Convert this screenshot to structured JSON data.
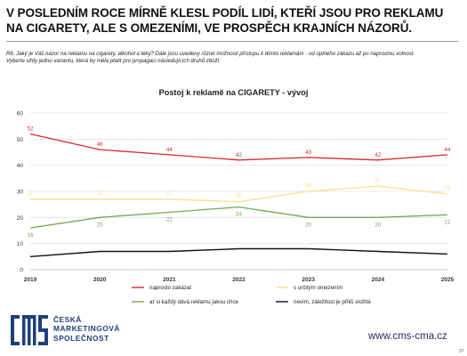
{
  "header": {
    "headline": "V posledním roce mírně klesl podíl lidí, kteří jsou pro reklamu na cigarety, ale s omezeními, ve prospěch krajních názorů.",
    "question_line1": "R6.  Jaký je Váš názor na reklamu na cigarety, alkohol a léky? Dále jsou uvedeny různé možnosti přístupu k těmto reklamám - od úplného zákazu až po naprostou volnost.",
    "question_line2": "Vyberte vždy jednu variantu, která by měla platit pro propagaci následujících druhů zboží:"
  },
  "chart_data": {
    "type": "line",
    "title": "Postoj k reklamě na CIGARETY - vývoj",
    "x": [
      "2019",
      "2020",
      "2021",
      "2022",
      "2023",
      "2024",
      "2025"
    ],
    "xlabel": "",
    "ylabel": "",
    "ylim": [
      0,
      60
    ],
    "yticks": [
      "0",
      "10",
      "20",
      "30",
      "40",
      "50",
      "60"
    ],
    "grid": true,
    "legend_position": "bottom",
    "series": [
      {
        "name": "naprosto zakázat",
        "color": "#d9282b",
        "values": [
          52,
          46,
          44,
          42,
          43,
          42,
          44
        ],
        "labels": [
          "52",
          "46",
          "44",
          "42",
          "43",
          "42",
          "44"
        ]
      },
      {
        "name": "s určitým omezením",
        "color": "#f6df8c",
        "values": [
          27,
          27,
          27,
          26,
          30,
          32,
          29
        ],
        "labels": [
          "27",
          "27",
          "27",
          "26",
          "30",
          "32",
          "29"
        ]
      },
      {
        "name": "ať si každý dává reklamu jakou chce",
        "color": "#6fa953",
        "values": [
          16,
          20,
          22,
          24,
          20,
          20,
          21
        ],
        "labels": [
          "16",
          "20",
          "22",
          "24",
          "20",
          "20",
          "21"
        ]
      },
      {
        "name": "nevím, záležitost je příliš složitá",
        "color": "#111111",
        "values": [
          5,
          7,
          7,
          8,
          8,
          7,
          6
        ],
        "labels": []
      }
    ]
  },
  "footer": {
    "org_line1": "ČESKÁ",
    "org_line2": "MARKETINGOVÁ",
    "org_line3": "SPOLEČNOST",
    "logo_text": "cms",
    "website": "www.cms-cma.cz",
    "page_number": "37",
    "logo_color": "#1f3f7a"
  }
}
